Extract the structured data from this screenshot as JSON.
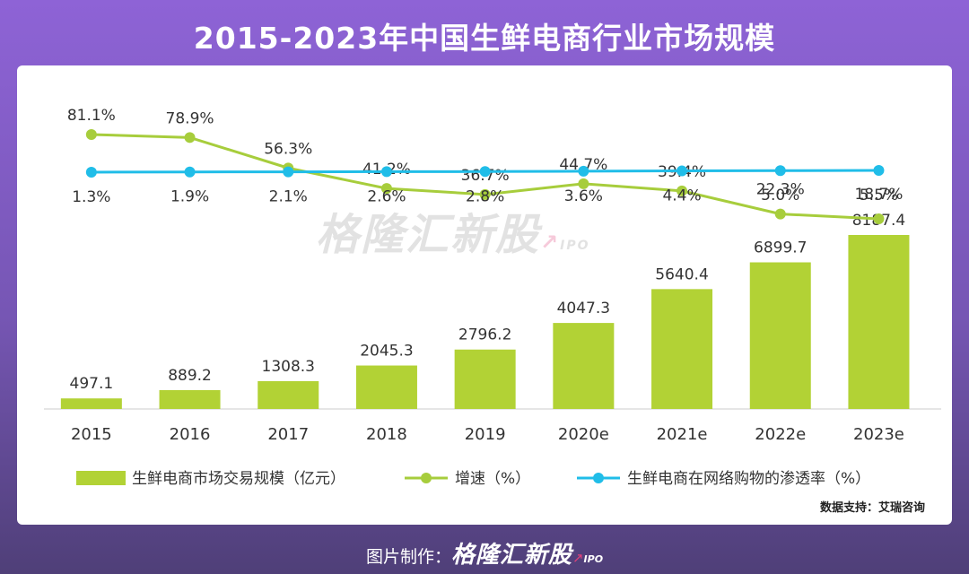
{
  "title": "2015-2023年中国生鲜电商行业市场规模",
  "source": "数据支持：艾瑞咨询",
  "footer": {
    "label": "图片制作：",
    "brand": "格隆汇新股",
    "brand_sub": "IPO"
  },
  "watermark": {
    "text": "格隆汇新股",
    "sub": "IPO"
  },
  "colors": {
    "bar": "#b2d235",
    "growth": "#a7cd3c",
    "penetration": "#20bde8"
  },
  "chart_data": {
    "type": "bar",
    "categories": [
      "2015",
      "2016",
      "2017",
      "2018",
      "2019",
      "2020e",
      "2021e",
      "2022e",
      "2023e"
    ],
    "series": [
      {
        "name": "生鲜电商市场交易规模（亿元）",
        "type": "bar",
        "values": [
          497.1,
          889.2,
          1308.3,
          2045.3,
          2796.2,
          4047.3,
          5640.4,
          6899.7,
          8187.4
        ]
      },
      {
        "name": "增速（%）",
        "type": "line",
        "values": [
          81.1,
          78.9,
          56.3,
          41.2,
          36.7,
          44.7,
          39.4,
          22.3,
          18.7
        ]
      },
      {
        "name": "生鲜电商在网络购物的渗透率（%）",
        "type": "line",
        "values": [
          1.3,
          1.9,
          2.1,
          2.6,
          2.8,
          3.6,
          4.4,
          5.0,
          5.5
        ]
      }
    ],
    "value_labels": {
      "bar": [
        "497.1",
        "889.2",
        "1308.3",
        "2045.3",
        "2796.2",
        "4047.3",
        "5640.4",
        "6899.7",
        "8187.4"
      ],
      "growth": [
        "81.1%",
        "78.9%",
        "56.3%",
        "41.2%",
        "36.7%",
        "44.7%",
        "39.4%",
        "22.3%",
        "18.7%"
      ],
      "penetration": [
        "1.3%",
        "1.9%",
        "2.1%",
        "2.6%",
        "2.8%",
        "3.6%",
        "4.4%",
        "5.0%",
        "5.5%"
      ]
    },
    "legend_position": "bottom",
    "grid": false
  }
}
